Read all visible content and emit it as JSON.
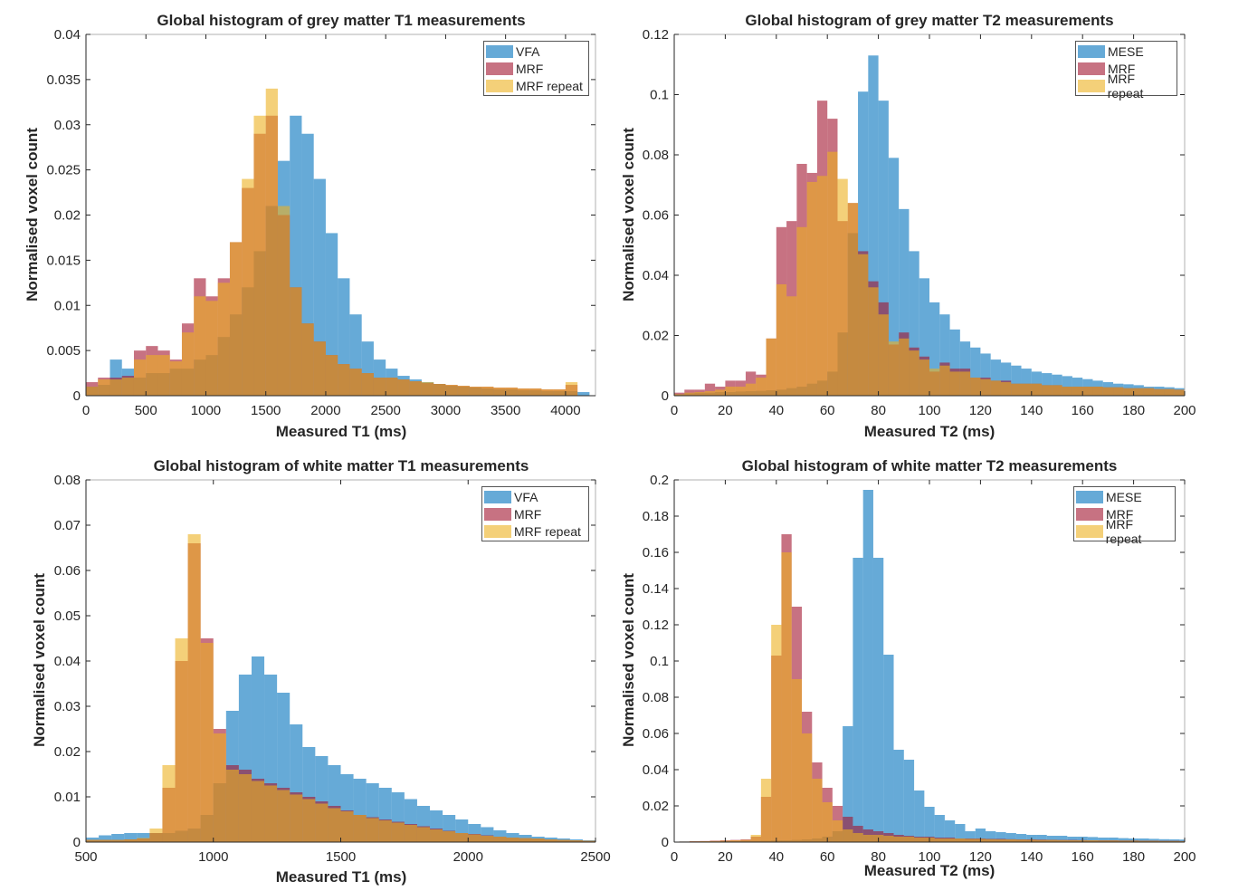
{
  "colors": {
    "series1": "#0072BD",
    "series2": "#A2142F",
    "series3": "#EDB120",
    "opacity": 0.6
  },
  "chart_data": [
    {
      "type": "bar",
      "title": "Global histogram of grey matter T1 measurements",
      "xlabel": "Measured T1 (ms)",
      "ylabel": "Normalised voxel count",
      "xlim": [
        0,
        4250
      ],
      "ylim": [
        0,
        0.04
      ],
      "xticks": [
        0,
        500,
        1000,
        1500,
        2000,
        2500,
        3000,
        3500,
        4000
      ],
      "yticks": [
        0,
        0.005,
        0.01,
        0.015,
        0.02,
        0.025,
        0.03,
        0.035,
        0.04
      ],
      "grid": false,
      "legend_position": "top-right",
      "bin_start": 0,
      "bin_width": 100,
      "series": [
        {
          "name": "VFA",
          "values": [
            0.001,
            0.0012,
            0.004,
            0.003,
            0.002,
            0.0025,
            0.0025,
            0.003,
            0.003,
            0.004,
            0.0045,
            0.0065,
            0.009,
            0.012,
            0.016,
            0.021,
            0.026,
            0.031,
            0.029,
            0.024,
            0.018,
            0.013,
            0.009,
            0.006,
            0.004,
            0.003,
            0.0022,
            0.0018,
            0.0015,
            0.0013,
            0.0011,
            0.001,
            0.0009,
            0.0008,
            0.0007,
            0.0007,
            0.0006,
            0.0006,
            0.0005,
            0.0005,
            0.0005,
            0.0004
          ]
        },
        {
          "name": "MRF",
          "values": [
            0.0015,
            0.002,
            0.002,
            0.0022,
            0.005,
            0.0055,
            0.005,
            0.004,
            0.008,
            0.013,
            0.011,
            0.013,
            0.017,
            0.023,
            0.029,
            0.031,
            0.02,
            0.012,
            0.008,
            0.006,
            0.0045,
            0.0035,
            0.003,
            0.0025,
            0.002,
            0.002,
            0.0018,
            0.0016,
            0.0014,
            0.0013,
            0.0012,
            0.0011,
            0.001,
            0.001,
            0.0009,
            0.0009,
            0.0008,
            0.0008,
            0.0007,
            0.0007,
            0.0012,
            0
          ]
        },
        {
          "name": "MRF repeat",
          "values": [
            0.001,
            0.0018,
            0.0018,
            0.002,
            0.004,
            0.0045,
            0.0045,
            0.0038,
            0.007,
            0.011,
            0.0105,
            0.0125,
            0.017,
            0.024,
            0.031,
            0.034,
            0.021,
            0.012,
            0.008,
            0.006,
            0.0045,
            0.0035,
            0.003,
            0.0025,
            0.002,
            0.002,
            0.0018,
            0.0016,
            0.0015,
            0.0013,
            0.0012,
            0.0011,
            0.001,
            0.001,
            0.0009,
            0.0009,
            0.0008,
            0.0008,
            0.0007,
            0.0007,
            0.0015,
            0
          ]
        }
      ]
    },
    {
      "type": "bar",
      "title": "Global histogram of grey matter T2 measurements",
      "xlabel": "Measured T2 (ms)",
      "ylabel": "Normalised voxel count",
      "xlim": [
        0,
        200
      ],
      "ylim": [
        0,
        0.12
      ],
      "xticks": [
        0,
        20,
        40,
        60,
        80,
        100,
        120,
        140,
        160,
        180,
        200
      ],
      "yticks": [
        0,
        0.02,
        0.04,
        0.06,
        0.08,
        0.1,
        0.12
      ],
      "grid": false,
      "legend_position": "top-right",
      "bin_start": 0,
      "bin_width": 4,
      "series": [
        {
          "name": "MESE",
          "values": [
            0.0005,
            0.0008,
            0.001,
            0.001,
            0.0012,
            0.0012,
            0.0014,
            0.0015,
            0.0016,
            0.0018,
            0.002,
            0.0025,
            0.003,
            0.004,
            0.005,
            0.008,
            0.021,
            0.054,
            0.101,
            0.113,
            0.098,
            0.079,
            0.062,
            0.048,
            0.039,
            0.031,
            0.027,
            0.022,
            0.018,
            0.016,
            0.014,
            0.012,
            0.011,
            0.01,
            0.009,
            0.008,
            0.0075,
            0.007,
            0.0065,
            0.006,
            0.0055,
            0.005,
            0.0045,
            0.004,
            0.0038,
            0.0035,
            0.003,
            0.003,
            0.0028,
            0.0025
          ]
        },
        {
          "name": "MRF",
          "values": [
            0.001,
            0.002,
            0.002,
            0.004,
            0.003,
            0.005,
            0.005,
            0.008,
            0.007,
            0.019,
            0.056,
            0.058,
            0.077,
            0.074,
            0.098,
            0.092,
            0.058,
            0.064,
            0.048,
            0.038,
            0.031,
            0.017,
            0.021,
            0.016,
            0.013,
            0.008,
            0.011,
            0.009,
            0.009,
            0.006,
            0.006,
            0.005,
            0.005,
            0.004,
            0.004,
            0.004,
            0.0035,
            0.0035,
            0.003,
            0.003,
            0.003,
            0.003,
            0.0028,
            0.0028,
            0.0025,
            0.0025,
            0.0025,
            0.0022,
            0.0022,
            0.002
          ]
        },
        {
          "name": "MRF repeat",
          "values": [
            0.0005,
            0.001,
            0.0012,
            0.0015,
            0.002,
            0.003,
            0.003,
            0.004,
            0.006,
            0.019,
            0.037,
            0.033,
            0.056,
            0.071,
            0.073,
            0.081,
            0.072,
            0.064,
            0.047,
            0.036,
            0.027,
            0.018,
            0.019,
            0.015,
            0.012,
            0.009,
            0.01,
            0.008,
            0.008,
            0.006,
            0.0055,
            0.005,
            0.0045,
            0.004,
            0.004,
            0.004,
            0.0035,
            0.0035,
            0.003,
            0.003,
            0.003,
            0.003,
            0.0028,
            0.0028,
            0.0025,
            0.0025,
            0.0025,
            0.0022,
            0.0022,
            0.002
          ]
        }
      ]
    },
    {
      "type": "bar",
      "title": "Global histogram of white matter T1 measurements",
      "xlabel": "Measured T1 (ms)",
      "ylabel": "Normalised voxel count",
      "xlim": [
        500,
        2500
      ],
      "ylim": [
        0,
        0.08
      ],
      "xticks": [
        500,
        1000,
        1500,
        2000,
        2500
      ],
      "yticks": [
        0,
        0.01,
        0.02,
        0.03,
        0.04,
        0.05,
        0.06,
        0.07,
        0.08
      ],
      "grid": false,
      "legend_position": "top-right",
      "bin_start": 500,
      "bin_width": 50,
      "series": [
        {
          "name": "VFA",
          "values": [
            0.001,
            0.0015,
            0.0018,
            0.002,
            0.002,
            0.002,
            0.002,
            0.0025,
            0.003,
            0.006,
            0.013,
            0.029,
            0.037,
            0.041,
            0.037,
            0.033,
            0.026,
            0.021,
            0.019,
            0.017,
            0.015,
            0.014,
            0.013,
            0.012,
            0.011,
            0.0095,
            0.008,
            0.007,
            0.006,
            0.005,
            0.004,
            0.0033,
            0.0026,
            0.002,
            0.0016,
            0.0012,
            0.001,
            0.0008,
            0.0006,
            0.0004
          ]
        },
        {
          "name": "MRF",
          "values": [
            0.0005,
            0.0005,
            0.0005,
            0.0006,
            0.0008,
            0.002,
            0.012,
            0.04,
            0.066,
            0.045,
            0.025,
            0.017,
            0.016,
            0.014,
            0.013,
            0.012,
            0.011,
            0.01,
            0.009,
            0.008,
            0.007,
            0.006,
            0.0055,
            0.005,
            0.0045,
            0.004,
            0.0035,
            0.003,
            0.0025,
            0.002,
            0.0018,
            0.0015,
            0.0012,
            0.001,
            0.0009,
            0.0008,
            0.0006,
            0.0005,
            0.0004,
            0.0003
          ]
        },
        {
          "name": "MRF repeat",
          "values": [
            0.0005,
            0.0005,
            0.0005,
            0.0006,
            0.0009,
            0.003,
            0.017,
            0.045,
            0.068,
            0.044,
            0.024,
            0.016,
            0.015,
            0.0135,
            0.0125,
            0.0115,
            0.0105,
            0.0095,
            0.0085,
            0.0075,
            0.0068,
            0.006,
            0.0053,
            0.0048,
            0.0043,
            0.0038,
            0.0033,
            0.0028,
            0.0024,
            0.002,
            0.0017,
            0.0014,
            0.0012,
            0.001,
            0.0009,
            0.0008,
            0.0006,
            0.0005,
            0.0004,
            0.0003
          ]
        }
      ]
    },
    {
      "type": "bar",
      "title": "Global histogram of white matter T2 measurements",
      "xlabel": "Measured T2 (ms)",
      "ylabel": "Normalised voxel count",
      "xlim": [
        0,
        200
      ],
      "ylim": [
        0,
        0.2
      ],
      "xticks": [
        0,
        20,
        40,
        60,
        80,
        100,
        120,
        140,
        160,
        180,
        200
      ],
      "yticks": [
        0,
        0.02,
        0.04,
        0.06,
        0.08,
        0.1,
        0.12,
        0.14,
        0.16,
        0.18,
        0.2
      ],
      "grid": false,
      "legend_position": "top-right",
      "bin_start": 2,
      "bin_width": 4,
      "series": [
        {
          "name": "MESE",
          "values": [
            0.0003,
            0.0003,
            0.0004,
            0.0004,
            0.0005,
            0.0005,
            0.0006,
            0.0007,
            0.0008,
            0.001,
            0.001,
            0.0012,
            0.0015,
            0.002,
            0.003,
            0.006,
            0.064,
            0.157,
            0.1945,
            0.157,
            0.1035,
            0.051,
            0.0455,
            0.0285,
            0.0195,
            0.015,
            0.012,
            0.01,
            0.006,
            0.0075,
            0.006,
            0.0055,
            0.005,
            0.0045,
            0.004,
            0.004,
            0.0035,
            0.0035,
            0.003,
            0.003,
            0.0028,
            0.0025,
            0.0025,
            0.0022,
            0.002,
            0.002,
            0.0018,
            0.0016,
            0.0015,
            0.0014
          ]
        },
        {
          "name": "MRF",
          "values": [
            0.0003,
            0.0005,
            0.0006,
            0.0008,
            0.001,
            0.0012,
            0.0015,
            0.003,
            0.025,
            0.103,
            0.17,
            0.13,
            0.072,
            0.044,
            0.03,
            0.02,
            0.014,
            0.009,
            0.007,
            0.006,
            0.005,
            0.004,
            0.0035,
            0.003,
            0.003,
            0.0025,
            0.0025,
            0.002,
            0.002,
            0.002,
            0.0018,
            0.0018,
            0.0016,
            0.0015,
            0.0015,
            0.0014,
            0.0013,
            0.0012,
            0.0012,
            0.0011,
            0.001,
            0.001,
            0.001,
            0.0009,
            0.0009,
            0.0008,
            0.0008,
            0.0007,
            0.0007,
            0.0006
          ]
        },
        {
          "name": "MRF repeat",
          "values": [
            0.0003,
            0.0004,
            0.0005,
            0.0006,
            0.0008,
            0.001,
            0.0012,
            0.004,
            0.035,
            0.12,
            0.16,
            0.09,
            0.06,
            0.035,
            0.022,
            0.012,
            0.007,
            0.005,
            0.004,
            0.004,
            0.0035,
            0.003,
            0.003,
            0.0025,
            0.0025,
            0.002,
            0.002,
            0.002,
            0.0018,
            0.0018,
            0.0016,
            0.0015,
            0.0015,
            0.0014,
            0.0013,
            0.0012,
            0.0012,
            0.0011,
            0.001,
            0.001,
            0.001,
            0.0009,
            0.0009,
            0.0008,
            0.0008,
            0.0007,
            0.0007,
            0.0006,
            0.0006,
            0.0005
          ]
        }
      ]
    }
  ]
}
